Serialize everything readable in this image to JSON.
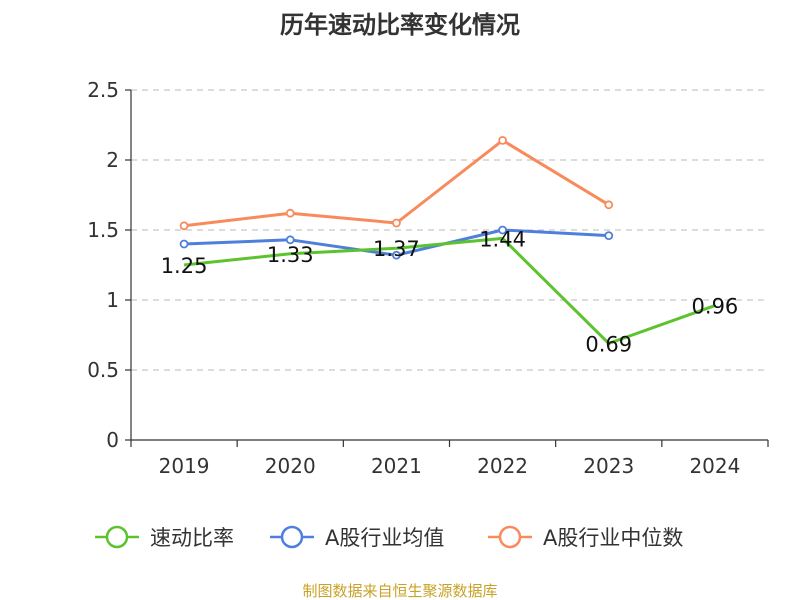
{
  "chart_data": {
    "type": "line",
    "title": "历年速动比率变化情况",
    "categories": [
      "2019",
      "2020",
      "2021",
      "2022",
      "2023",
      "2024"
    ],
    "y_ticks": [
      "0",
      "0.5",
      "1",
      "1.5",
      "2",
      "2.5"
    ],
    "ylim": [
      0,
      2.5
    ],
    "grid": true,
    "legend_position": "bottom",
    "series": [
      {
        "name": "速动比率",
        "color": "#5cc32e",
        "values": [
          1.25,
          1.33,
          1.37,
          1.44,
          0.69,
          0.96
        ],
        "labels": [
          "1.25",
          "1.33",
          "1.37",
          "1.44",
          "0.69",
          "0.96"
        ]
      },
      {
        "name": "A股行业均值",
        "color": "#4f7fdc",
        "values": [
          1.4,
          1.43,
          1.32,
          1.5,
          1.46,
          null
        ]
      },
      {
        "name": "A股行业中位数",
        "color": "#f88b5c",
        "values": [
          1.53,
          1.62,
          1.55,
          2.14,
          1.68,
          null
        ]
      }
    ],
    "source": "制图数据来自恒生聚源数据库"
  }
}
